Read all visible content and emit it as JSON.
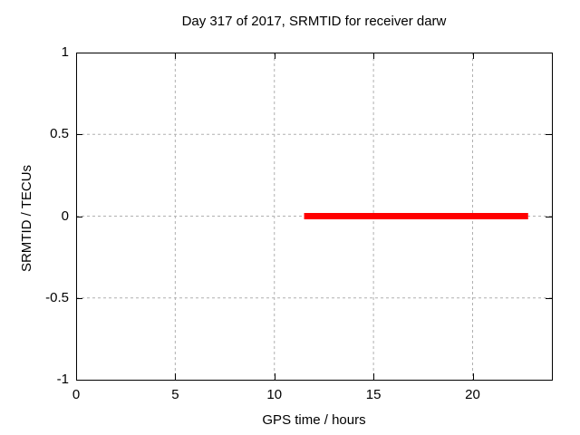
{
  "chart_data": {
    "type": "line",
    "title": "Day 317 of 2017, SRMTID for receiver darw",
    "xlabel": "GPS time / hours",
    "ylabel": "SRMTID / TECUs",
    "xlim": [
      0,
      24
    ],
    "ylim": [
      -1,
      1
    ],
    "xticks": [
      {
        "value": 0,
        "label": "0"
      },
      {
        "value": 5,
        "label": "5"
      },
      {
        "value": 10,
        "label": "10"
      },
      {
        "value": 15,
        "label": "15"
      },
      {
        "value": 20,
        "label": "20"
      }
    ],
    "yticks": [
      {
        "value": -1,
        "label": "-1"
      },
      {
        "value": -0.5,
        "label": "-0.5"
      },
      {
        "value": 0,
        "label": "0"
      },
      {
        "value": 0.5,
        "label": "0.5"
      },
      {
        "value": 1,
        "label": "1"
      }
    ],
    "grid": true,
    "legend": "none",
    "colors": {
      "background": "#ffffff",
      "axis": "#000000",
      "grid": "#b0b0b0",
      "series": "#ff0000"
    },
    "series": [
      {
        "name": "SRMTID",
        "color": "#ff0000",
        "linewidth": 7,
        "points": [
          [
            11.5,
            0
          ],
          [
            22.8,
            0
          ]
        ]
      }
    ]
  }
}
